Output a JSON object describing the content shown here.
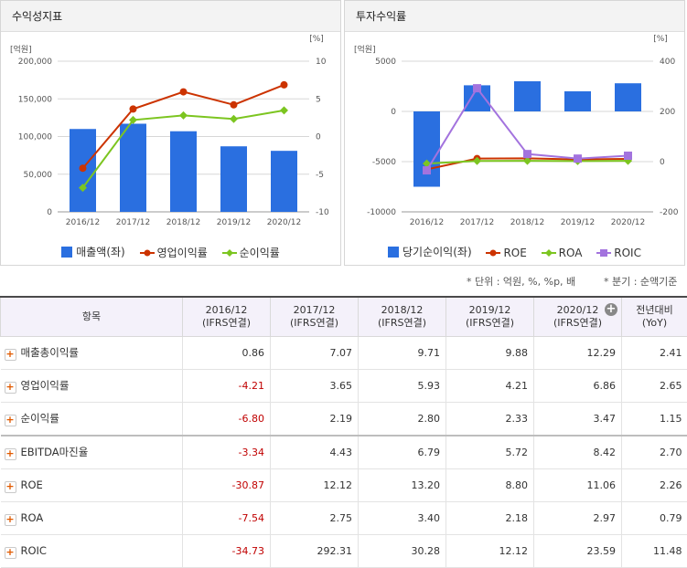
{
  "charts": {
    "profitability": {
      "title": "수익성지표",
      "left_unit": "[억원]",
      "right_unit": "[%]",
      "left_ticks": [
        "200,000",
        "150,000",
        "100,000",
        "50,000",
        "0"
      ],
      "right_ticks": [
        "10",
        "5",
        "0",
        "-5",
        "-10"
      ],
      "legend": [
        "매출액(좌)",
        "영업이익률",
        "순이익률"
      ]
    },
    "investment": {
      "title": "투자수익률",
      "left_unit": "[억원]",
      "right_unit": "[%]",
      "left_ticks": [
        "5000",
        "0",
        "-5000",
        "-10000"
      ],
      "right_ticks": [
        "400",
        "200",
        "0",
        "-200"
      ],
      "legend": [
        "당기순이익(좌)",
        "ROE",
        "ROA",
        "ROIC"
      ]
    }
  },
  "chart_data": [
    {
      "type": "bar",
      "title": "수익성지표",
      "categories": [
        "2016/12",
        "2017/12",
        "2018/12",
        "2019/12",
        "2020/12"
      ],
      "ylim": [
        0,
        200000
      ],
      "y2lim": [
        -10,
        10
      ],
      "series": [
        {
          "name": "매출액(좌)",
          "axis": "left",
          "type": "bar",
          "values": [
            110000,
            117000,
            107000,
            87000,
            81000
          ]
        },
        {
          "name": "영업이익률",
          "axis": "right",
          "type": "line",
          "values": [
            -4.21,
            3.65,
            5.93,
            4.21,
            6.86
          ]
        },
        {
          "name": "순이익률",
          "axis": "right",
          "type": "line",
          "values": [
            -6.8,
            2.19,
            2.8,
            2.33,
            3.47
          ]
        }
      ]
    },
    {
      "type": "bar",
      "title": "투자수익률",
      "categories": [
        "2016/12",
        "2017/12",
        "2018/12",
        "2019/12",
        "2020/12"
      ],
      "ylim": [
        -10000,
        5000
      ],
      "y2lim": [
        -200,
        400
      ],
      "series": [
        {
          "name": "당기순이익(좌)",
          "axis": "left",
          "type": "bar",
          "values": [
            -7500,
            2600,
            3000,
            2000,
            2800
          ]
        },
        {
          "name": "ROE",
          "axis": "right",
          "type": "line",
          "values": [
            -30.87,
            12.12,
            13.2,
            8.8,
            11.06
          ]
        },
        {
          "name": "ROA",
          "axis": "right",
          "type": "line",
          "values": [
            -7.54,
            2.75,
            3.4,
            2.18,
            2.97
          ]
        },
        {
          "name": "ROIC",
          "axis": "right",
          "type": "line",
          "values": [
            -34.73,
            292.31,
            30.28,
            12.12,
            23.59
          ]
        }
      ]
    }
  ],
  "notes": {
    "unit": "* 단위 : 억원, %, %p, 배",
    "quarter": "* 분기 : 순액기준"
  },
  "table": {
    "item_header": "항목",
    "columns": [
      {
        "year": "2016/12",
        "basis": "(IFRS연결)"
      },
      {
        "year": "2017/12",
        "basis": "(IFRS연결)"
      },
      {
        "year": "2018/12",
        "basis": "(IFRS연결)"
      },
      {
        "year": "2019/12",
        "basis": "(IFRS연결)"
      },
      {
        "year": "2020/12",
        "basis": "(IFRS연결)"
      }
    ],
    "yoy_header": "전년대비",
    "yoy_sub": "(YoY)",
    "rows": [
      {
        "name": "매출총이익률",
        "values": [
          "0.86",
          "7.07",
          "9.71",
          "9.88",
          "12.29"
        ],
        "yoy": "2.41"
      },
      {
        "name": "영업이익률",
        "values": [
          "-4.21",
          "3.65",
          "5.93",
          "4.21",
          "6.86"
        ],
        "yoy": "2.65"
      },
      {
        "name": "순이익률",
        "values": [
          "-6.80",
          "2.19",
          "2.80",
          "2.33",
          "3.47"
        ],
        "yoy": "1.15"
      },
      {
        "name": "EBITDA마진율",
        "values": [
          "-3.34",
          "4.43",
          "6.79",
          "5.72",
          "8.42"
        ],
        "yoy": "2.70"
      },
      {
        "name": "ROE",
        "values": [
          "-30.87",
          "12.12",
          "13.20",
          "8.80",
          "11.06"
        ],
        "yoy": "2.26"
      },
      {
        "name": "ROA",
        "values": [
          "-7.54",
          "2.75",
          "3.40",
          "2.18",
          "2.97"
        ],
        "yoy": "0.79"
      },
      {
        "name": "ROIC",
        "values": [
          "-34.73",
          "292.31",
          "30.28",
          "12.12",
          "23.59"
        ],
        "yoy": "11.48"
      }
    ]
  },
  "colors": {
    "bar": "#2a6fe0",
    "line1": "#cc3300",
    "line2": "#7cc520",
    "line3": "#a373de",
    "negative": "#c00000"
  }
}
